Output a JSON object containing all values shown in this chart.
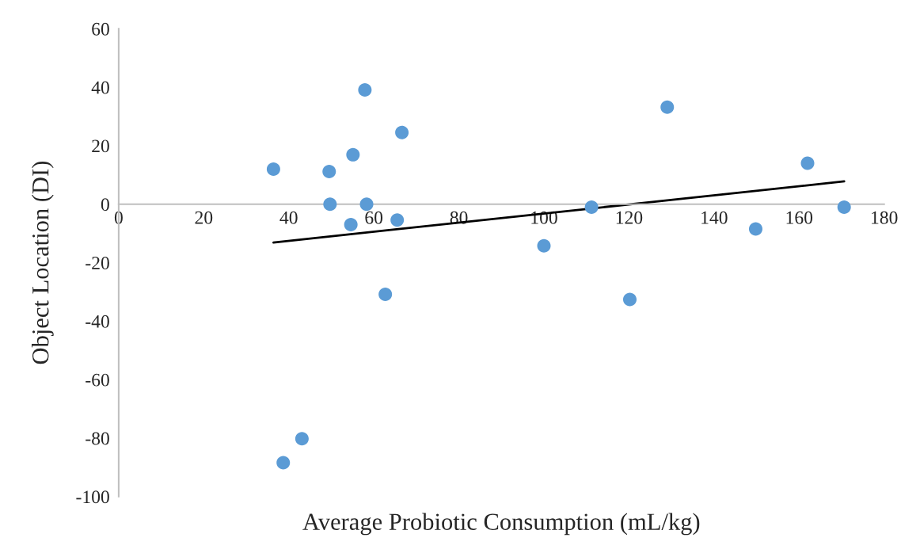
{
  "chart_data": {
    "type": "scatter",
    "xlabel": "Average Probiotic Consumption (mL/kg)",
    "ylabel": "Object Location (DI)",
    "xlim": [
      0,
      180
    ],
    "xticks": [
      0,
      20,
      40,
      60,
      80,
      100,
      120,
      140,
      160,
      180
    ],
    "ylim": [
      -100,
      60
    ],
    "yticks": [
      -100,
      -80,
      -60,
      -40,
      -20,
      0,
      20,
      40,
      60
    ],
    "grid": false,
    "legend": false,
    "marker": "circle",
    "series": [
      {
        "color": "#5b9bd5",
        "x": [
          36.4,
          38.7,
          43.1,
          49.5,
          49.7,
          54.6,
          55.1,
          57.9,
          58.3,
          62.7,
          65.5,
          66.6,
          100,
          111.2,
          120.2,
          129,
          149.8,
          162,
          170.6
        ],
        "values": [
          12,
          -88.4,
          -80.2,
          11.2,
          0,
          -7,
          16.9,
          39.1,
          0,
          -30.8,
          -5.4,
          24.5,
          -14.2,
          -1,
          -32.6,
          33.2,
          -8.5,
          14,
          -1
        ]
      },
      {
        "type": "line",
        "color": "#000000",
        "marker": "none",
        "line_style": "solid",
        "x": [
          36.4,
          170.6
        ],
        "values": [
          -13.1,
          7.8
        ]
      }
    ]
  }
}
